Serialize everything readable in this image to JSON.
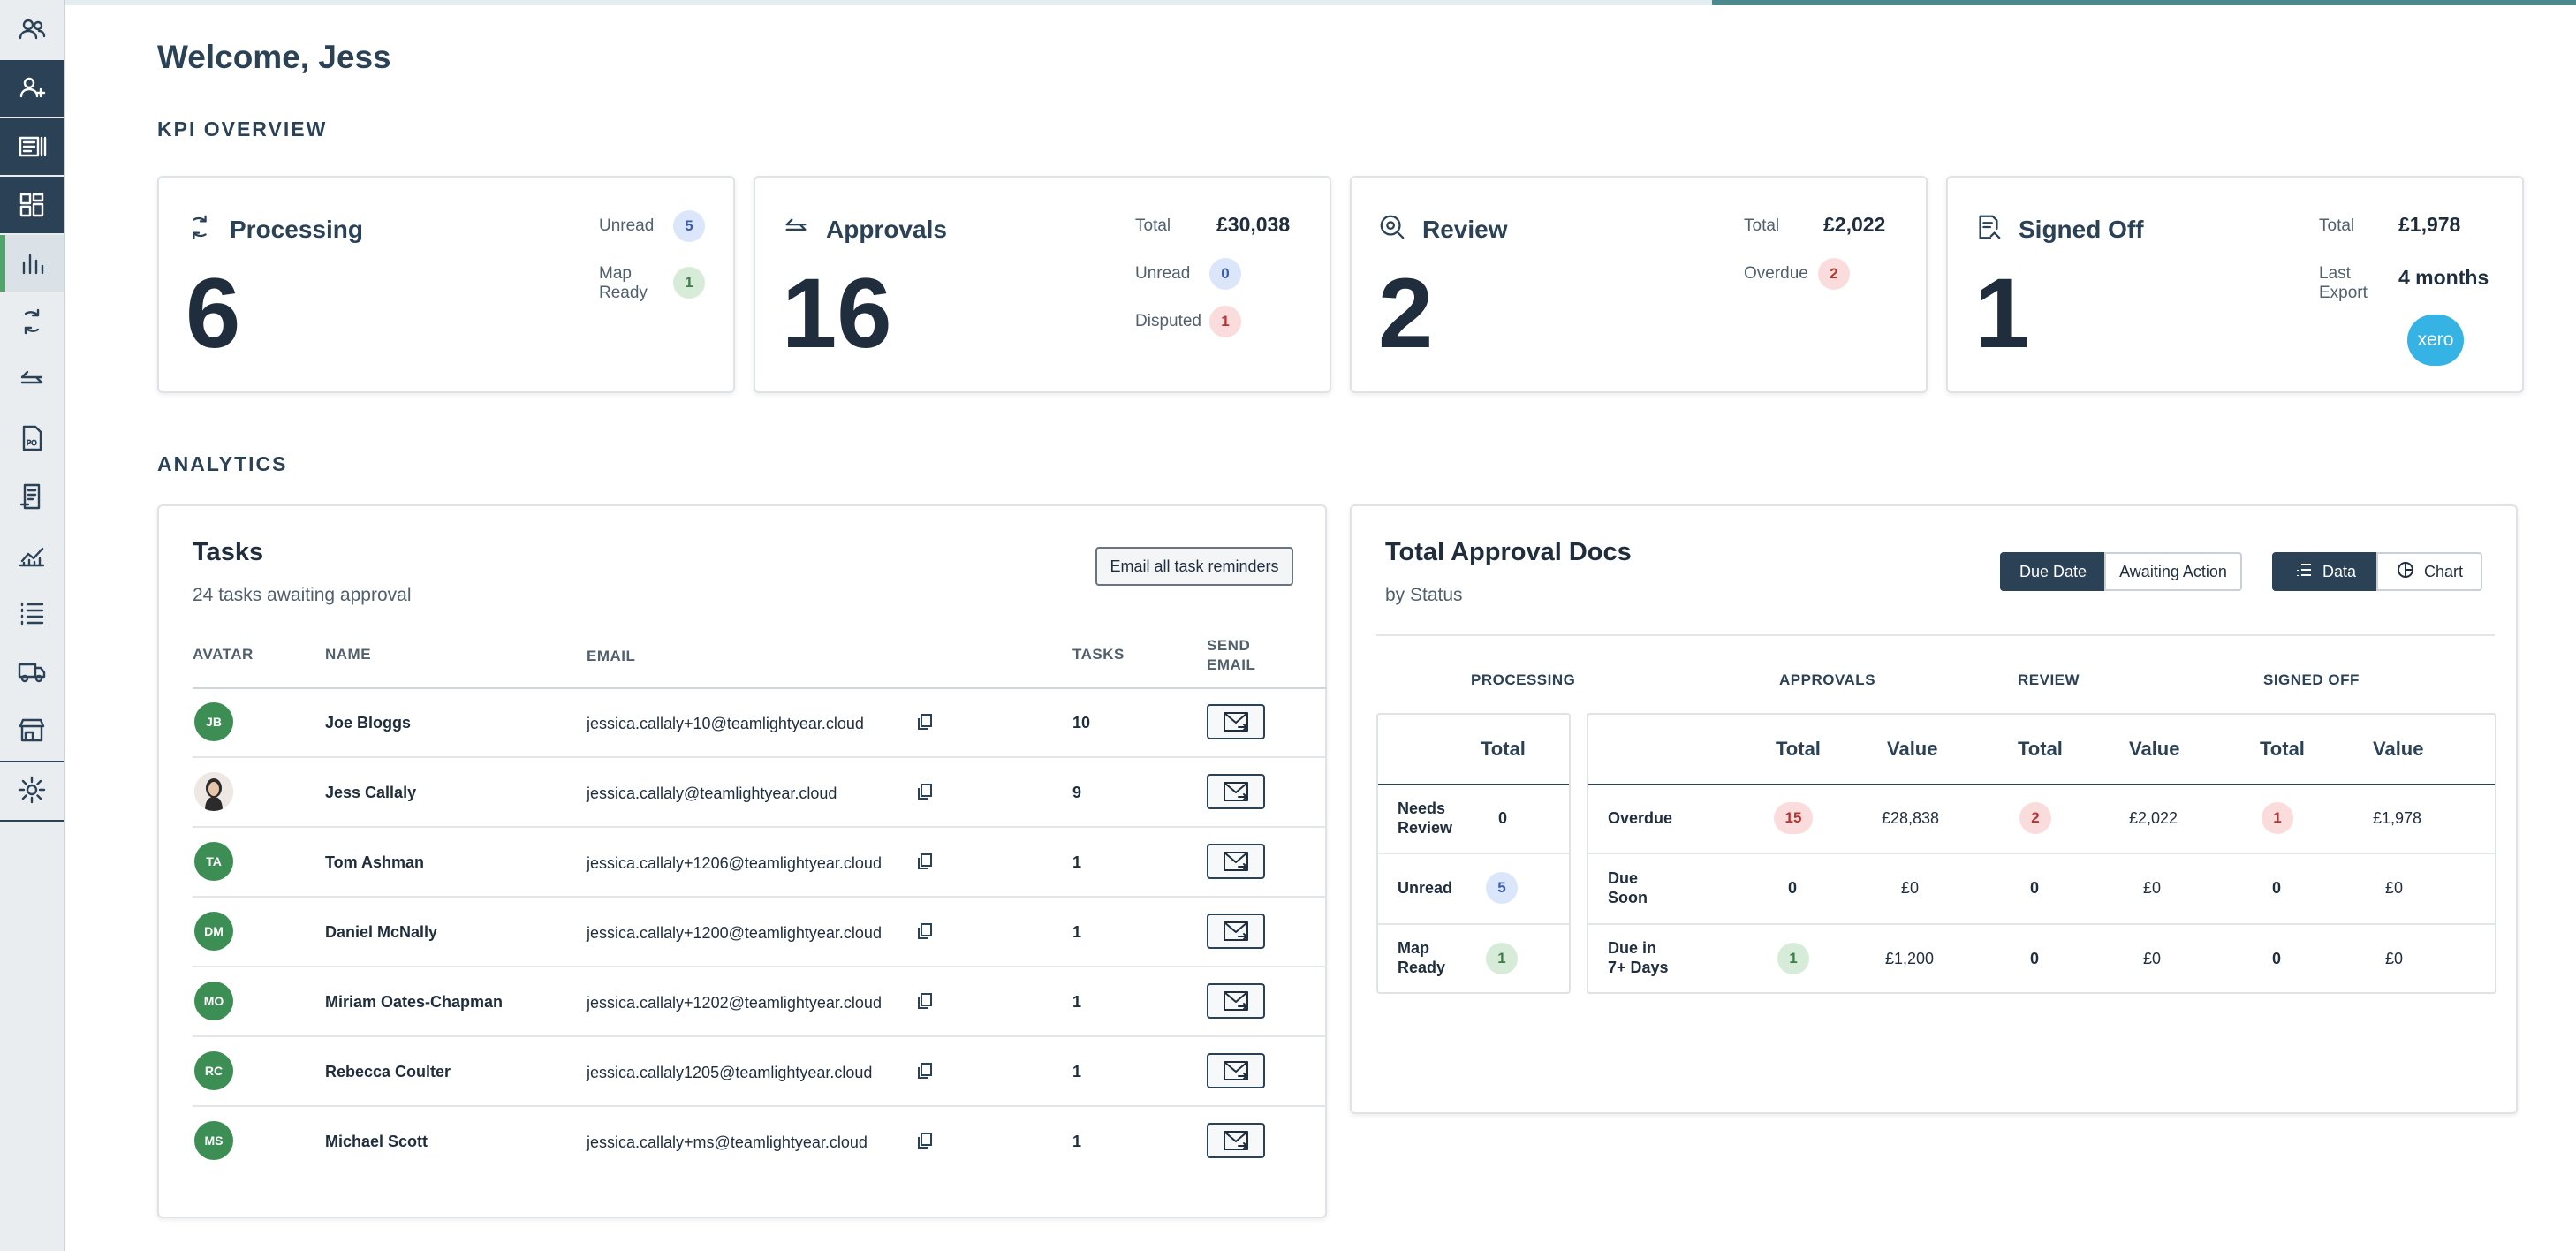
{
  "greeting": "Welcome, Jess",
  "sections": {
    "kpi": "KPI OVERVIEW",
    "analytics": "ANALYTICS"
  },
  "sidebar": [
    {
      "icon": "people-icon"
    },
    {
      "icon": "user-tick-icon"
    },
    {
      "icon": "document-list-icon"
    },
    {
      "icon": "dashboard-grid-icon"
    },
    {
      "icon": "bar-chart-icon"
    },
    {
      "icon": "sync-icon"
    },
    {
      "icon": "arrows-exchange-icon"
    },
    {
      "icon": "po-document-icon"
    },
    {
      "icon": "receipt-icon"
    },
    {
      "icon": "line-chart-icon"
    },
    {
      "icon": "list-icon"
    },
    {
      "icon": "truck-icon"
    },
    {
      "icon": "store-icon"
    },
    {
      "icon": "gear-icon"
    }
  ],
  "kpi": {
    "processing": {
      "title": "Processing",
      "count": "6",
      "unread_label": "Unread",
      "unread": "5",
      "map_ready_label_1": "Map",
      "map_ready_label_2": "Ready",
      "map_ready": "1"
    },
    "approvals": {
      "title": "Approvals",
      "count": "16",
      "total_label": "Total",
      "total": "£30,038",
      "unread_label": "Unread",
      "unread": "0",
      "disputed_label": "Disputed",
      "disputed": "1"
    },
    "review": {
      "title": "Review",
      "count": "2",
      "total_label": "Total",
      "total": "£2,022",
      "overdue_label": "Overdue",
      "overdue": "2"
    },
    "signed_off": {
      "title": "Signed Off",
      "count": "1",
      "total_label": "Total",
      "total": "£1,978",
      "last_export_label_1": "Last",
      "last_export_label_2": "Export",
      "last_export": "4 months",
      "xero_logo": "xero"
    }
  },
  "tasks": {
    "title": "Tasks",
    "subtitle": "24 tasks awaiting approval",
    "email_all_label": "Email all task reminders",
    "headers": {
      "avatar": "AVATAR",
      "name": "NAME",
      "email": "EMAIL",
      "tasks": "TASKS",
      "send_1": "SEND",
      "send_2": "EMAIL"
    },
    "rows": [
      {
        "initials": "JB",
        "name": "Joe Bloggs",
        "email": "jessica.callaly+10@teamlightyear.cloud",
        "tasks": "10"
      },
      {
        "initials": "",
        "name": "Jess Callaly",
        "email": "jessica.callaly@teamlightyear.cloud",
        "tasks": "9"
      },
      {
        "initials": "TA",
        "name": "Tom Ashman",
        "email": "jessica.callaly+1206@teamlightyear.cloud",
        "tasks": "1"
      },
      {
        "initials": "DM",
        "name": "Daniel McNally",
        "email": "jessica.callaly+1200@teamlightyear.cloud",
        "tasks": "1"
      },
      {
        "initials": "MO",
        "name": "Miriam Oates-Chapman",
        "email": "jessica.callaly+1202@teamlightyear.cloud",
        "tasks": "1"
      },
      {
        "initials": "RC",
        "name": "Rebecca Coulter",
        "email": "jessica.callaly1205@teamlightyear.cloud",
        "tasks": "1"
      },
      {
        "initials": "MS",
        "name": "Michael Scott",
        "email": "jessica.callaly+ms@teamlightyear.cloud",
        "tasks": "1"
      }
    ]
  },
  "approval_docs": {
    "title": "Total Approval Docs",
    "subtitle": "by Status",
    "toggles": {
      "due_date": "Due Date",
      "awaiting_action": "Awaiting Action",
      "data": "Data",
      "chart": "Chart"
    },
    "groups": {
      "processing": "PROCESSING",
      "approvals": "APPROVALS",
      "review": "REVIEW",
      "signed_off": "SIGNED OFF"
    },
    "col_total": "Total",
    "col_value": "Value",
    "processing_rows": [
      {
        "label_1": "Needs",
        "label_2": "Review",
        "value": "0"
      },
      {
        "label_1": "Unread",
        "label_2": "",
        "value": "5"
      },
      {
        "label_1": "Map",
        "label_2": "Ready",
        "value": "1"
      }
    ],
    "rows": [
      {
        "label_1": "Overdue",
        "label_2": "",
        "appr_total": "15",
        "appr_value": "£28,838",
        "rev_total": "2",
        "rev_value": "£2,022",
        "so_total": "1",
        "so_value": "£1,978"
      },
      {
        "label_1": "Due",
        "label_2": "Soon",
        "appr_total": "0",
        "appr_value": "£0",
        "rev_total": "0",
        "rev_value": "£0",
        "so_total": "0",
        "so_value": "£0"
      },
      {
        "label_1": "Due in",
        "label_2": "7+ Days",
        "appr_total": "1",
        "appr_value": "£1,200",
        "rev_total": "0",
        "rev_value": "£0",
        "so_total": "0",
        "so_value": "£0"
      }
    ]
  },
  "colors": {
    "navy": "#2a4156",
    "accent_green": "#4fa56b",
    "avatar_green": "#3c8e54",
    "xero_blue": "#35b3e5"
  }
}
